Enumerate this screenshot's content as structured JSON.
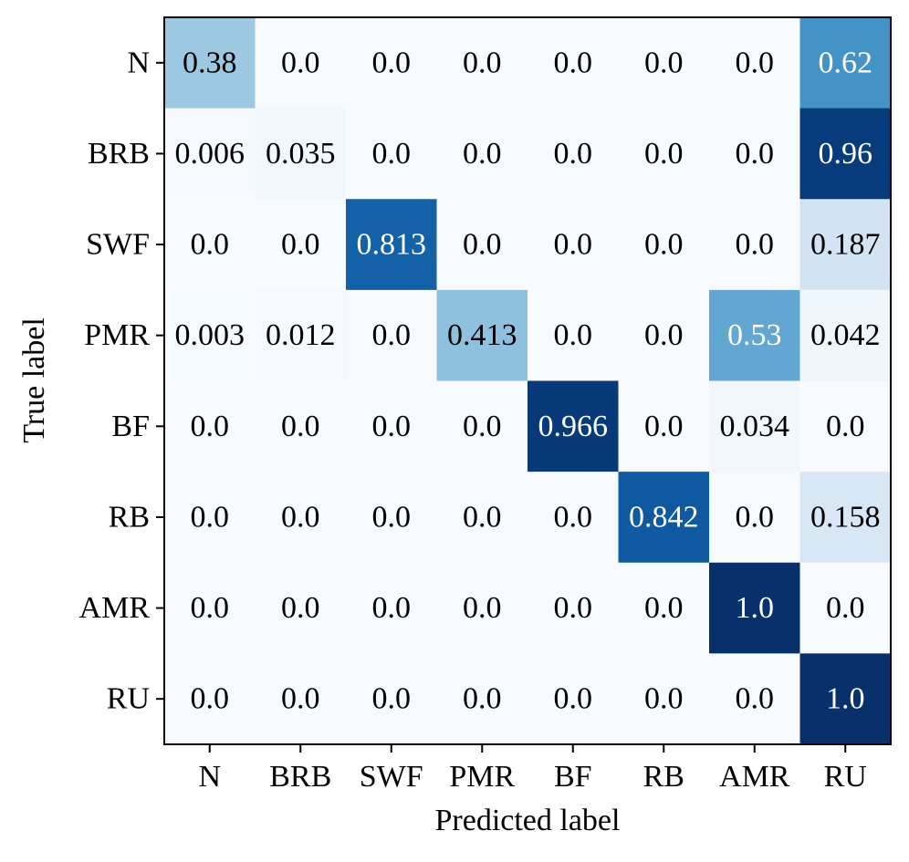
{
  "chart_data": {
    "type": "heatmap",
    "title": "",
    "xlabel": "Predicted label",
    "ylabel": "True label",
    "colormap": "Blues",
    "value_range": [
      0,
      1
    ],
    "x_categories": [
      "N",
      "BRB",
      "SWF",
      "PMR",
      "BF",
      "RB",
      "AMR",
      "RU"
    ],
    "y_categories": [
      "N",
      "BRB",
      "SWF",
      "PMR",
      "BF",
      "RB",
      "AMR",
      "RU"
    ],
    "values": [
      [
        0.38,
        0.0,
        0.0,
        0.0,
        0.0,
        0.0,
        0.0,
        0.62
      ],
      [
        0.006,
        0.035,
        0.0,
        0.0,
        0.0,
        0.0,
        0.0,
        0.96
      ],
      [
        0.0,
        0.0,
        0.813,
        0.0,
        0.0,
        0.0,
        0.0,
        0.187
      ],
      [
        0.003,
        0.012,
        0.0,
        0.413,
        0.0,
        0.0,
        0.53,
        0.042
      ],
      [
        0.0,
        0.0,
        0.0,
        0.0,
        0.966,
        0.0,
        0.034,
        0.0
      ],
      [
        0.0,
        0.0,
        0.0,
        0.0,
        0.0,
        0.842,
        0.0,
        0.158
      ],
      [
        0.0,
        0.0,
        0.0,
        0.0,
        0.0,
        0.0,
        1.0,
        0.0
      ],
      [
        0.0,
        0.0,
        0.0,
        0.0,
        0.0,
        0.0,
        0.0,
        1.0
      ]
    ],
    "cell_labels": [
      [
        "0.38",
        "0.0",
        "0.0",
        "0.0",
        "0.0",
        "0.0",
        "0.0",
        "0.62"
      ],
      [
        "0.006",
        "0.035",
        "0.0",
        "0.0",
        "0.0",
        "0.0",
        "0.0",
        "0.96"
      ],
      [
        "0.0",
        "0.0",
        "0.813",
        "0.0",
        "0.0",
        "0.0",
        "0.0",
        "0.187"
      ],
      [
        "0.003",
        "0.012",
        "0.0",
        "0.413",
        "0.0",
        "0.0",
        "0.53",
        "0.042"
      ],
      [
        "0.0",
        "0.0",
        "0.0",
        "0.0",
        "0.966",
        "0.0",
        "0.034",
        "0.0"
      ],
      [
        "0.0",
        "0.0",
        "0.0",
        "0.0",
        "0.0",
        "0.842",
        "0.0",
        "0.158"
      ],
      [
        "0.0",
        "0.0",
        "0.0",
        "0.0",
        "0.0",
        "0.0",
        "1.0",
        "0.0"
      ],
      [
        "0.0",
        "0.0",
        "0.0",
        "0.0",
        "0.0",
        "0.0",
        "0.0",
        "1.0"
      ]
    ],
    "colors": {
      "text_dark": "#000000",
      "text_light": "#ffffff",
      "frame": "#000000"
    }
  }
}
